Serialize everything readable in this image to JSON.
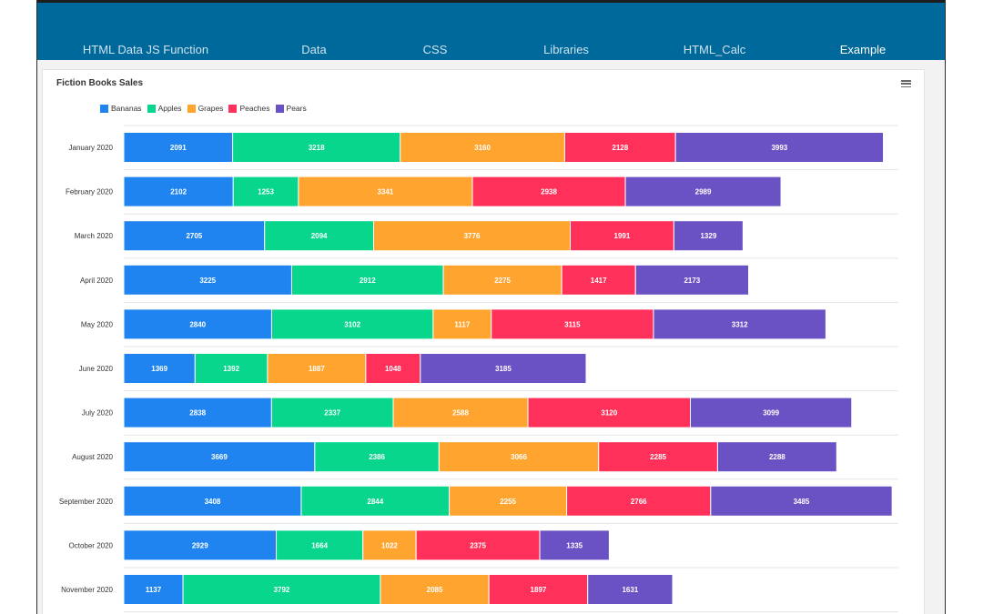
{
  "tabs": [
    {
      "label": "HTML Data JS Function",
      "active": false
    },
    {
      "label": "Data",
      "active": false
    },
    {
      "label": "CSS",
      "active": false
    },
    {
      "label": "Libraries",
      "active": false
    },
    {
      "label": "HTML_Calc",
      "active": false
    },
    {
      "label": "Example",
      "active": true
    }
  ],
  "colors": {
    "topbar": "#00699b",
    "Bananas": "#1f84f0",
    "Apples": "#07d68c",
    "Grapes": "#ffa42f",
    "Peaches": "#ff305a",
    "Pears": "#6b52c4"
  },
  "menu_icon": "hamburger-menu-icon",
  "chart_data": {
    "type": "bar",
    "orientation": "horizontal",
    "stacked": true,
    "title": "Fiction Books Sales",
    "legend_position": "top-left",
    "grid": true,
    "categories": [
      "January 2020",
      "February 2020",
      "March 2020",
      "April 2020",
      "May 2020",
      "June 2020",
      "July 2020",
      "August 2020",
      "September 2020",
      "October 2020",
      "November 2020"
    ],
    "series": [
      {
        "name": "Bananas",
        "values": [
          2091,
          2102,
          2705,
          3225,
          2840,
          1369,
          2838,
          3669,
          3408,
          2929,
          1137
        ]
      },
      {
        "name": "Apples",
        "values": [
          3218,
          1253,
          2094,
          2912,
          3102,
          1392,
          2337,
          2386,
          2844,
          1664,
          3792
        ]
      },
      {
        "name": "Grapes",
        "values": [
          3160,
          3341,
          3776,
          2275,
          1117,
          1887,
          2588,
          3066,
          2255,
          1022,
          2085
        ]
      },
      {
        "name": "Peaches",
        "values": [
          2128,
          2938,
          1991,
          1417,
          3115,
          1048,
          3120,
          2285,
          2766,
          2375,
          1897
        ]
      },
      {
        "name": "Pears",
        "values": [
          3993,
          2989,
          1329,
          2173,
          3312,
          3185,
          3099,
          2288,
          3485,
          1335,
          1631
        ]
      }
    ],
    "xlim": [
      0,
      16000
    ]
  }
}
